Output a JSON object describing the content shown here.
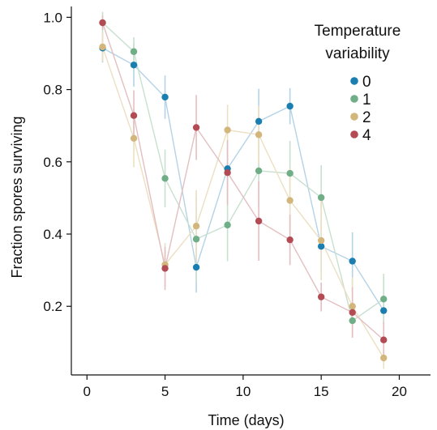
{
  "chart_data": {
    "type": "line",
    "title": "",
    "xlabel": "Time (days)",
    "ylabel": "Fraction spores surviving",
    "xlim": [
      -1,
      22
    ],
    "ylim": [
      0.01,
      1.03
    ],
    "x_ticks": [
      0,
      5,
      10,
      15,
      20
    ],
    "x_tick_labels": [
      "0",
      "5",
      "10",
      "15",
      "20"
    ],
    "y_ticks": [
      0.2,
      0.4,
      0.6,
      0.8,
      1.0
    ],
    "y_tick_labels": [
      "0.2",
      "0.4",
      "0.6",
      "0.8",
      "1.0"
    ],
    "grid": false,
    "legend": {
      "title_lines": [
        "Temperature",
        "variability"
      ],
      "placement": "top-right"
    },
    "x": [
      1,
      3,
      5,
      7,
      9,
      11,
      13,
      15,
      17,
      19
    ],
    "series": [
      {
        "name": "0",
        "color": "#1a7fb0",
        "line_color": "#b4d3e6",
        "values": [
          0.915,
          0.868,
          0.779,
          0.308,
          0.581,
          0.712,
          0.754,
          0.366,
          0.325,
          0.188
        ],
        "errors": [
          0.04,
          0.06,
          0.06,
          0.07,
          0.08,
          0.09,
          0.05,
          0.07,
          0.08,
          0.04
        ]
      },
      {
        "name": "1",
        "color": "#6fae86",
        "line_color": "#c8e0cf",
        "values": [
          0.985,
          0.905,
          0.554,
          0.386,
          0.425,
          0.575,
          0.568,
          0.501,
          0.16,
          0.22
        ],
        "errors": [
          0.03,
          0.04,
          0.08,
          0.12,
          0.1,
          0.1,
          0.09,
          0.09,
          0.04,
          0.07
        ]
      },
      {
        "name": "2",
        "color": "#d2b67c",
        "line_color": "#ecdfc2",
        "values": [
          0.918,
          0.665,
          0.315,
          0.422,
          0.688,
          0.675,
          0.493,
          0.382,
          0.2,
          0.057
        ],
        "errors": [
          0.04,
          0.08,
          0.06,
          0.1,
          0.07,
          0.08,
          0.09,
          0.11,
          0.08,
          0.03
        ]
      },
      {
        "name": "4",
        "color": "#b24b54",
        "line_color": "#e3bfc2",
        "values": [
          0.985,
          0.728,
          0.305,
          0.695,
          0.57,
          0.436,
          0.384,
          0.226,
          0.183,
          0.107
        ],
        "errors": [
          0.02,
          0.07,
          0.06,
          0.09,
          0.09,
          0.11,
          0.07,
          0.04,
          0.07,
          0.05
        ]
      }
    ]
  }
}
